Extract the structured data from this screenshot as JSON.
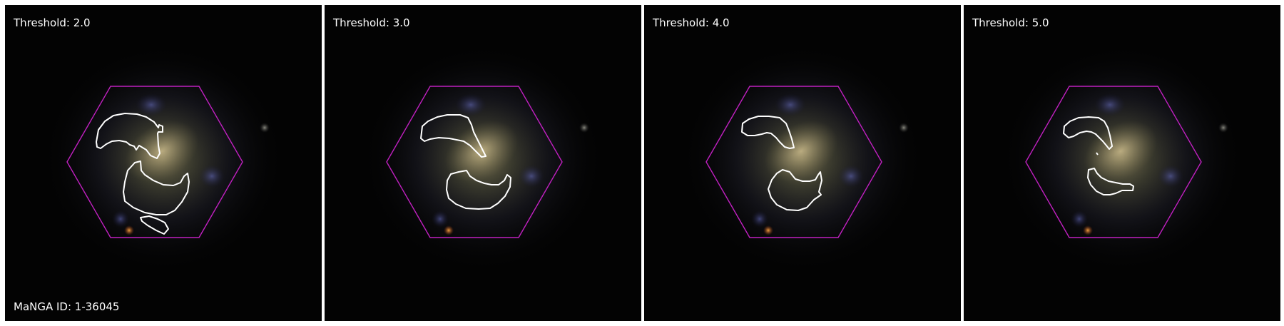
{
  "panels": [
    {
      "label": "Threshold: 2.0",
      "contour_set": "t2"
    },
    {
      "label": "Threshold: 3.0",
      "contour_set": "t3"
    },
    {
      "label": "Threshold: 4.0",
      "contour_set": "t4"
    },
    {
      "label": "Threshold: 5.0",
      "contour_set": "t5"
    }
  ],
  "galaxy_id_label": "MaNGA ID: 1-36045",
  "colors": {
    "background": "#ffffff",
    "image_background": "#030303",
    "hexagon": "#c020c0",
    "contour": "#ffffff",
    "text": "#ffffff"
  }
}
